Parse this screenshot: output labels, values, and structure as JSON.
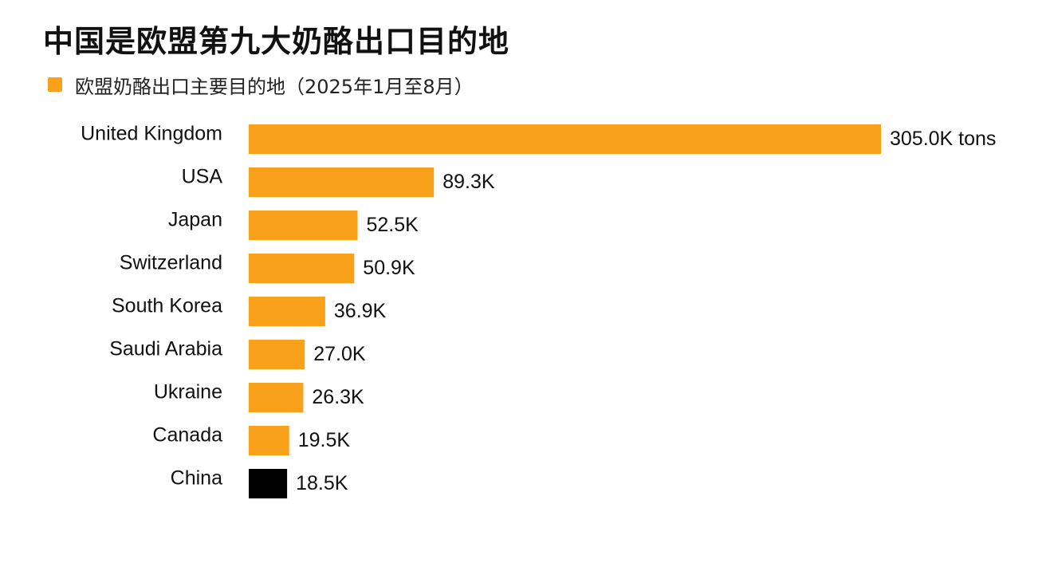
{
  "header": {
    "title": "中国是欧盟第九大奶酪出口目的地",
    "legend_label": "欧盟奶酪出口主要目的地（2025年1月至8月）"
  },
  "colors": {
    "primary": "#F9A11B",
    "highlight": "#000000"
  },
  "chart_data": {
    "type": "bar",
    "orientation": "horizontal",
    "title": "中国是欧盟第九大奶酪出口目的地",
    "legend": [
      "欧盟奶酪出口主要目的地（2025年1月至8月）"
    ],
    "legend_placement": "top-left",
    "categories": [
      "United Kingdom",
      "USA",
      "Japan",
      "Switzerland",
      "South Korea",
      "Saudi Arabia",
      "Ukraine",
      "Canada",
      "China"
    ],
    "values": [
      305.0,
      89.3,
      52.5,
      50.9,
      36.9,
      27.0,
      26.3,
      19.5,
      18.5
    ],
    "value_labels": [
      "305.0K tons",
      "89.3K",
      "52.5K",
      "50.9K",
      "36.9K",
      "27.0K",
      "26.3K",
      "19.5K",
      "18.5K"
    ],
    "unit": "K tons",
    "highlight_category": "China",
    "xlim": [
      0,
      305.0
    ],
    "grid": false,
    "xlabel": "",
    "ylabel": ""
  }
}
